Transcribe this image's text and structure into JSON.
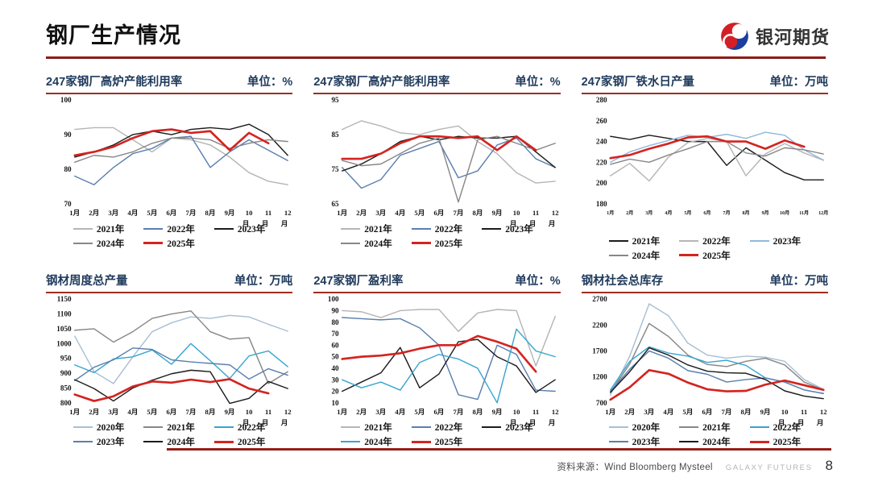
{
  "header": {
    "title": "钢厂生产情况",
    "logo_text": "银河期货"
  },
  "footer": {
    "source": "资料来源：Wind Bloomberg Mysteel",
    "brand": "GALAXY FUTURES",
    "page_number": "8"
  },
  "palette": {
    "lightgray": "#b5b5b5",
    "gray": "#878787",
    "black": "#1c1c1c",
    "blue": "#5b7fae",
    "red": "#d42420",
    "cyan": "#38a6cf",
    "skyblue": "#8fb8da",
    "bluegray": "#a9bfd2",
    "title_navy": "#1f3a5c",
    "rule_red": "#9e2d22"
  },
  "chart_data": [
    {
      "type": "line",
      "title": "247家钢厂高炉产能利用率",
      "unit": "单位：%",
      "ylim": [
        70,
        100
      ],
      "yticks": [
        70,
        80,
        90,
        100
      ],
      "xlabel_style": "wrap",
      "categories": [
        "1月",
        "2月",
        "3月",
        "4月",
        "5月",
        "6月",
        "7月",
        "8月",
        "9月",
        "10月",
        "11月",
        "12月"
      ],
      "series": [
        {
          "name": "2021年",
          "color": "lightgray",
          "values": [
            91.5,
            92,
            92,
            88.5,
            85,
            89,
            88.5,
            87,
            83.5,
            79,
            76.5,
            75.5
          ]
        },
        {
          "name": "2022年",
          "color": "blue",
          "values": [
            78,
            75.5,
            80.5,
            84.5,
            86,
            89,
            89.5,
            80.5,
            85,
            88.5,
            85.5,
            82.5
          ]
        },
        {
          "name": "2023年",
          "color": "black",
          "values": [
            83.5,
            85,
            87,
            90,
            91,
            90,
            91.5,
            92,
            91.5,
            93,
            90,
            84
          ]
        },
        {
          "name": "2024年",
          "color": "gray",
          "values": [
            82,
            84,
            83.5,
            85,
            87.5,
            89,
            89,
            88.5,
            86,
            87.5,
            88.5,
            88
          ]
        },
        {
          "name": "2025年",
          "color": "red",
          "values": [
            84,
            85,
            86.5,
            89,
            91,
            91.5,
            90.5,
            91,
            85.5,
            90.5,
            87.5,
            null
          ]
        }
      ]
    },
    {
      "type": "line",
      "title": "247家钢厂高炉产能利用率",
      "unit": "单位：%",
      "ylim": [
        65,
        95
      ],
      "yticks": [
        65,
        75,
        85,
        95
      ],
      "xlabel_style": "wrap",
      "categories": [
        "1月",
        "2月",
        "3月",
        "4月",
        "5月",
        "6月",
        "7月",
        "8月",
        "9月",
        "10月",
        "11月",
        "12月"
      ],
      "series": [
        {
          "name": "2021年",
          "color": "lightgray",
          "values": [
            86.5,
            89,
            87.5,
            85.5,
            85,
            86.5,
            87.5,
            83,
            79.5,
            74,
            71,
            71.5
          ]
        },
        {
          "name": "2022年",
          "color": "blue",
          "values": [
            75.5,
            69.5,
            72,
            79,
            81,
            83,
            72.5,
            74.5,
            82,
            84,
            78,
            75.5
          ]
        },
        {
          "name": "2023年",
          "color": "black",
          "values": [
            74.5,
            76.5,
            79.5,
            83,
            84.5,
            83.5,
            84.5,
            84,
            84,
            84.5,
            80,
            75.5
          ]
        },
        {
          "name": "2024年",
          "color": "gray",
          "values": [
            77.5,
            76,
            76.5,
            79.5,
            82.5,
            84,
            65.5,
            83.5,
            84.5,
            82.5,
            80.5,
            82.5
          ]
        },
        {
          "name": "2025年",
          "color": "red",
          "values": [
            78,
            78,
            79.5,
            82.5,
            84.5,
            84.5,
            84,
            84.5,
            80.5,
            84.5,
            80.5,
            null
          ]
        }
      ]
    },
    {
      "type": "line",
      "title": "247家钢厂铁水日产量",
      "unit": "单位：万吨",
      "ylim": [
        180,
        280
      ],
      "yticks": [
        180,
        200,
        220,
        240,
        260,
        280
      ],
      "xlabel_style": "tiny",
      "categories": [
        "1月",
        "2月",
        "3月",
        "4月",
        "5月",
        "6月",
        "7月",
        "8月",
        "9月",
        "10月",
        "11月",
        "12月"
      ],
      "series": [
        {
          "name": "2021年",
          "color": "black",
          "values": [
            245,
            242,
            246,
            243,
            240,
            240,
            217,
            234,
            222,
            210,
            203,
            203
          ]
        },
        {
          "name": "2022年",
          "color": "lightgray",
          "values": [
            207,
            219,
            202,
            225,
            239,
            243,
            240,
            207,
            228,
            238,
            229,
            222
          ]
        },
        {
          "name": "2023年",
          "color": "skyblue",
          "values": [
            220,
            230,
            236,
            241,
            246,
            244,
            247,
            243,
            249,
            246,
            232,
            222
          ]
        },
        {
          "name": "2024年",
          "color": "gray",
          "values": [
            218,
            223,
            220,
            227,
            233,
            240,
            240,
            229,
            226,
            234,
            232,
            228
          ]
        },
        {
          "name": "2025年",
          "color": "red",
          "values": [
            224,
            227,
            233,
            238,
            244,
            245,
            240,
            240,
            233,
            241,
            235,
            null
          ]
        }
      ]
    },
    {
      "type": "line",
      "title": "钢材周度总产量",
      "unit": "单位：万吨",
      "ylim": [
        800,
        1150
      ],
      "yticks": [
        800,
        850,
        900,
        950,
        1000,
        1050,
        1100,
        1150
      ],
      "xlabel_style": "wrap",
      "categories": [
        "1月",
        "2月",
        "3月",
        "4月",
        "5月",
        "6月",
        "7月",
        "8月",
        "9月",
        "10月",
        "11月",
        "12月"
      ],
      "series": [
        {
          "name": "2020年",
          "color": "bluegray",
          "values": [
            1025,
            905,
            865,
            955,
            1040,
            1070,
            1090,
            1085,
            1095,
            1090,
            1065,
            1042
          ]
        },
        {
          "name": "2021年",
          "color": "gray",
          "values": [
            1045,
            1050,
            1005,
            1040,
            1085,
            1100,
            1110,
            1040,
            1015,
            1020,
            865,
            905
          ]
        },
        {
          "name": "2022年",
          "color": "cyan",
          "values": [
            928,
            902,
            948,
            955,
            978,
            930,
            1000,
            942,
            882,
            958,
            975,
            922
          ]
        },
        {
          "name": "2023年",
          "color": "blue",
          "values": [
            875,
            920,
            945,
            985,
            980,
            945,
            938,
            933,
            928,
            880,
            915,
            893
          ]
        },
        {
          "name": "2024年",
          "color": "black",
          "values": [
            878,
            848,
            806,
            850,
            876,
            898,
            910,
            905,
            798,
            815,
            872,
            848
          ]
        },
        {
          "name": "2025年",
          "color": "red",
          "values": [
            828,
            806,
            822,
            855,
            872,
            868,
            878,
            870,
            880,
            848,
            832,
            null
          ]
        }
      ]
    },
    {
      "type": "line",
      "title": "247家钢厂盈利率",
      "unit": "单位：%",
      "ylim": [
        10,
        100
      ],
      "yticks": [
        10,
        20,
        30,
        40,
        50,
        60,
        70,
        80,
        90,
        100
      ],
      "xlabel_style": "wrap",
      "categories": [
        "1月",
        "2月",
        "3月",
        "4月",
        "5月",
        "6月",
        "7月",
        "8月",
        "9月",
        "10月",
        "11月",
        "12月"
      ],
      "series": [
        {
          "name": "2021年",
          "color": "lightgray",
          "values": [
            90,
            89,
            84,
            90,
            91,
            91,
            72,
            88,
            91,
            90,
            42,
            85
          ]
        },
        {
          "name": "2022年",
          "color": "blue",
          "values": [
            84,
            83,
            82,
            83,
            75,
            60,
            17,
            13,
            60,
            52,
            21,
            20
          ]
        },
        {
          "name": "2023年",
          "color": "black",
          "values": [
            20,
            28,
            36,
            58,
            23,
            35,
            63,
            65,
            50,
            42,
            19,
            30
          ]
        },
        {
          "name": "2024年",
          "color": "cyan",
          "values": [
            30,
            23,
            28,
            21,
            45,
            52,
            48,
            40,
            10,
            74,
            55,
            50
          ]
        },
        {
          "name": "2025年",
          "color": "red",
          "values": [
            48,
            50,
            51,
            53,
            57,
            60,
            60,
            68,
            63,
            57,
            37,
            null
          ]
        }
      ]
    },
    {
      "type": "line",
      "title": "钢材社会总库存",
      "unit": "单位：万吨",
      "ylim": [
        700,
        2700
      ],
      "yticks": [
        700,
        1200,
        1700,
        2200,
        2700
      ],
      "xlabel_style": "wrap",
      "categories": [
        "1月",
        "2月",
        "3月",
        "4月",
        "5月",
        "6月",
        "7月",
        "8月",
        "9月",
        "10月",
        "11月",
        "12月"
      ],
      "series": [
        {
          "name": "2020年",
          "color": "bluegray",
          "values": [
            850,
            1600,
            2610,
            2380,
            1850,
            1620,
            1560,
            1600,
            1580,
            1500,
            1150,
            960
          ]
        },
        {
          "name": "2021年",
          "color": "gray",
          "values": [
            900,
            1450,
            2230,
            1980,
            1620,
            1440,
            1400,
            1500,
            1560,
            1430,
            1100,
            950
          ]
        },
        {
          "name": "2022年",
          "color": "cyan",
          "values": [
            950,
            1500,
            1780,
            1660,
            1600,
            1480,
            1520,
            1420,
            1180,
            1100,
            950,
            880
          ]
        },
        {
          "name": "2023年",
          "color": "blue",
          "values": [
            920,
            1350,
            1700,
            1560,
            1320,
            1250,
            1100,
            1150,
            1180,
            1100,
            950,
            880
          ]
        },
        {
          "name": "2024年",
          "color": "black",
          "values": [
            900,
            1300,
            1760,
            1620,
            1430,
            1310,
            1280,
            1270,
            1150,
            930,
            830,
            780
          ]
        },
        {
          "name": "2025年",
          "color": "red",
          "values": [
            760,
            1000,
            1330,
            1260,
            1090,
            960,
            920,
            930,
            1050,
            1130,
            1040,
            950
          ]
        }
      ]
    }
  ]
}
